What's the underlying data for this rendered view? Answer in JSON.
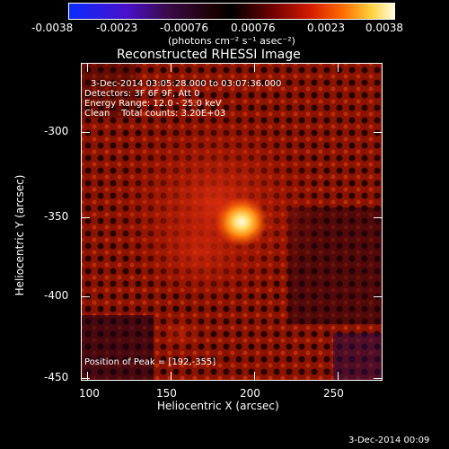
{
  "colorbar": {
    "tick_labels": [
      "-0.0038",
      "-0.0023",
      "-0.00076",
      "0.00076",
      "0.0023",
      "0.0038"
    ],
    "units_label": "(photons cm⁻² s⁻¹ asec⁻²)",
    "colors": [
      "#0a2cff",
      "#000000",
      "#d21a00",
      "#fffbe0"
    ]
  },
  "title": "Reconstructed RHESSI Image",
  "info": {
    "time_range": "3-Dec-2014 03:05:28.000 to 03:07:36.000",
    "detectors": "Detectors: 3F 6F 9F, Att 0",
    "energy": "Energy Range: 12.0 - 25.0 keV",
    "clean": "Clean    Total counts: 3.20E+03",
    "peak": "Position of Peak = [192,-355]"
  },
  "axes": {
    "x_label": "Heliocentric X (arcsec)",
    "y_label": "Heliocentric Y (arcsec)",
    "x_ticks": [
      "100",
      "150",
      "200",
      "250"
    ],
    "y_ticks": [
      "-300",
      "-350",
      "-400",
      "-450"
    ]
  },
  "footer_timestamp": "3-Dec-2014 00:09"
}
